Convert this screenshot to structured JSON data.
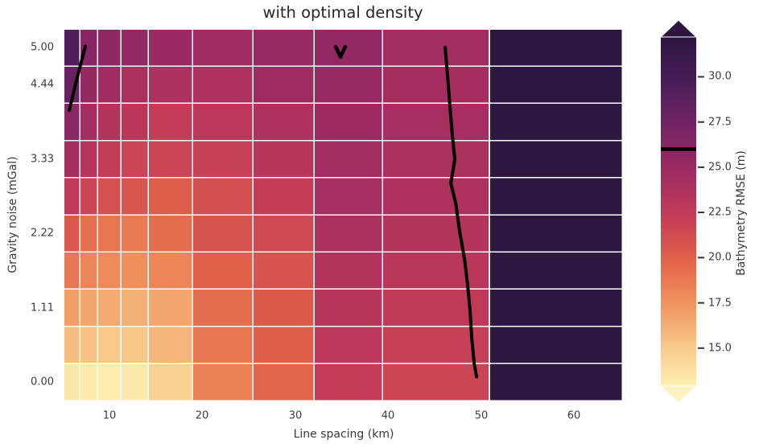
{
  "figure": {
    "background": "#ffffff",
    "text_color": "#3a3a3a"
  },
  "chart_data": {
    "type": "heatmap",
    "title": "with optimal density",
    "xlabel": "Line spacing (km)",
    "ylabel": "Gravity noise (mGal)",
    "grid_line_color": "#ffffff",
    "xlim": [
      5.06,
      65.2
    ],
    "ylim": [
      -0.277,
      5.277
    ],
    "x_centers_km": [
      6.0,
      7.7,
      10.0,
      12.9,
      16.7,
      21.5,
      27.8,
      35.9,
      46.4,
      58.1
    ],
    "x_edges_km": [
      5.06,
      6.79,
      8.7,
      11.21,
      14.16,
      18.93,
      25.43,
      32.01,
      39.38,
      50.9,
      65.2
    ],
    "y_centers_mgal": [
      5.0,
      4.44,
      3.89,
      3.33,
      2.78,
      2.22,
      1.67,
      1.11,
      0.56,
      0.0
    ],
    "values_rmse_m": [
      [
        29.4,
        26.2,
        25.8,
        25.4,
        25.0,
        24.6,
        25.1,
        25.4,
        24.5,
        32.2
      ],
      [
        28.0,
        25.3,
        24.6,
        24.0,
        23.9,
        23.8,
        24.7,
        25.1,
        24.3,
        32.2
      ],
      [
        25.9,
        24.4,
        23.5,
        22.9,
        22.3,
        22.8,
        23.8,
        24.8,
        24.2,
        32.2
      ],
      [
        24.4,
        23.2,
        22.4,
        21.8,
        21.7,
        22.0,
        23.2,
        24.5,
        24.0,
        32.2
      ],
      [
        22.7,
        21.7,
        21.0,
        20.6,
        20.2,
        21.2,
        22.3,
        24.2,
        23.7,
        32.2
      ],
      [
        20.5,
        19.2,
        18.9,
        18.7,
        19.3,
        20.8,
        21.5,
        23.9,
        23.4,
        32.2
      ],
      [
        18.8,
        18.2,
        17.9,
        17.7,
        18.2,
        20.0,
        20.8,
        23.5,
        23.0,
        32.2
      ],
      [
        17.0,
        16.6,
        16.4,
        16.2,
        16.6,
        19.3,
        20.4,
        23.2,
        22.6,
        32.2
      ],
      [
        15.6,
        15.4,
        15.1,
        15.2,
        15.9,
        18.8,
        20.1,
        22.8,
        22.1,
        32.2
      ],
      [
        13.4,
        13.2,
        13.1,
        13.3,
        14.6,
        18.4,
        19.8,
        22.3,
        21.7,
        32.2
      ]
    ],
    "x_ticks": [
      {
        "v": 10,
        "label": "10"
      },
      {
        "v": 20,
        "label": "20"
      },
      {
        "v": 30,
        "label": "30"
      },
      {
        "v": 40,
        "label": "40"
      },
      {
        "v": 50,
        "label": "50"
      },
      {
        "v": 60,
        "label": "60"
      }
    ],
    "y_ticks": [
      {
        "v": 5.0,
        "label": "5.00"
      },
      {
        "v": 4.444,
        "label": "4.44"
      },
      {
        "v": 3.333,
        "label": "3.33"
      },
      {
        "v": 2.222,
        "label": "2.22"
      },
      {
        "v": 1.111,
        "label": "1.11"
      },
      {
        "v": 0.0,
        "label": "0.00"
      }
    ],
    "colorbar": {
      "label": "Bathymetry RMSE (m)",
      "vmin": 12.9,
      "vmax": 32.2,
      "extend": "both",
      "ticks": [
        {
          "v": 30,
          "label": "30.0"
        },
        {
          "v": 27.5,
          "label": "27.5"
        },
        {
          "v": 25,
          "label": "25.0"
        },
        {
          "v": 22.5,
          "label": "22.5"
        },
        {
          "v": 20,
          "label": "20.0"
        },
        {
          "v": 17.5,
          "label": "17.5"
        },
        {
          "v": 15,
          "label": "15.0"
        }
      ],
      "level_marker": {
        "value": 26.0,
        "color": "#000000"
      }
    },
    "colormap_stops": [
      [
        32.2,
        "#2d1640"
      ],
      [
        30.0,
        "#451c56"
      ],
      [
        27.5,
        "#712365"
      ],
      [
        25.0,
        "#9a2a62"
      ],
      [
        22.5,
        "#c13a59"
      ],
      [
        20.0,
        "#e0604a"
      ],
      [
        17.5,
        "#f0935e"
      ],
      [
        15.0,
        "#f9ca8c"
      ],
      [
        12.9,
        "#fdf0b3"
      ]
    ],
    "overlays": {
      "color": "#000000",
      "optimal_line": [
        [
          46.14,
          5.0
        ],
        [
          46.4,
          4.57
        ],
        [
          46.66,
          4.11
        ],
        [
          46.92,
          3.67
        ],
        [
          47.18,
          3.33
        ],
        [
          46.75,
          2.97
        ],
        [
          47.27,
          2.68
        ],
        [
          47.7,
          2.25
        ],
        [
          48.22,
          1.84
        ],
        [
          48.57,
          1.44
        ],
        [
          48.83,
          1.05
        ],
        [
          49.0,
          0.66
        ],
        [
          49.26,
          0.28
        ],
        [
          49.52,
          0.08
        ]
      ],
      "short_segment": [
        [
          7.4,
          5.02
        ],
        [
          6.79,
          4.69
        ],
        [
          6.19,
          4.36
        ],
        [
          5.67,
          4.06
        ]
      ],
      "v_marker": [
        [
          34.35,
          5.01
        ],
        [
          34.87,
          4.86
        ],
        [
          35.39,
          5.01
        ]
      ]
    }
  }
}
